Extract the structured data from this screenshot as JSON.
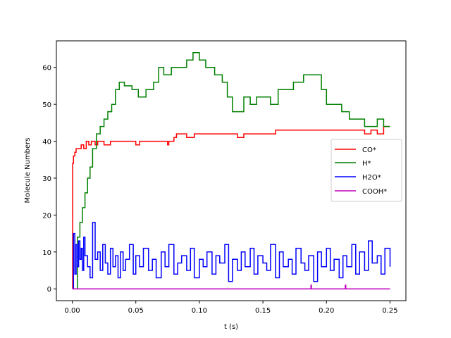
{
  "chart_data": {
    "type": "line",
    "title": "",
    "xlabel": "t (s)",
    "ylabel": "Molecule Numbers",
    "xlim": [
      -0.0125,
      0.2625
    ],
    "ylim": [
      -3.2,
      67.2
    ],
    "xticks": [
      0.0,
      0.05,
      0.1,
      0.15,
      0.2,
      0.25
    ],
    "xtick_labels": [
      "0.00",
      "0.05",
      "0.10",
      "0.15",
      "0.20",
      "0.25"
    ],
    "yticks": [
      0,
      10,
      20,
      30,
      40,
      50,
      60
    ],
    "ytick_labels": [
      "0",
      "10",
      "20",
      "30",
      "40",
      "50",
      "60"
    ],
    "grid": false,
    "legend_position": "center right",
    "step": true,
    "series": [
      {
        "name": "CO*",
        "color": "#ff0000",
        "x": [
          0.0,
          0.0003,
          0.001,
          0.002,
          0.003,
          0.005,
          0.007,
          0.009,
          0.011,
          0.013,
          0.015,
          0.018,
          0.02,
          0.025,
          0.03,
          0.035,
          0.05,
          0.053,
          0.06,
          0.075,
          0.076,
          0.08,
          0.082,
          0.09,
          0.095,
          0.096,
          0.1,
          0.13,
          0.135,
          0.14,
          0.15,
          0.155,
          0.16,
          0.18,
          0.2,
          0.22,
          0.225,
          0.23,
          0.235,
          0.24,
          0.245,
          0.25
        ],
        "values": [
          0,
          34,
          36,
          37,
          38,
          38,
          39,
          38,
          40,
          39,
          40,
          39,
          40,
          39,
          40,
          40,
          39,
          40,
          40,
          39,
          40,
          41,
          42,
          41,
          41,
          42,
          42,
          41,
          42,
          42,
          42,
          42,
          43,
          43,
          43,
          43,
          43,
          42,
          43,
          42,
          44,
          44
        ]
      },
      {
        "name": "H*",
        "color": "#008000",
        "x": [
          0.0,
          0.004,
          0.006,
          0.008,
          0.01,
          0.012,
          0.014,
          0.016,
          0.019,
          0.022,
          0.025,
          0.028,
          0.031,
          0.034,
          0.037,
          0.041,
          0.047,
          0.052,
          0.058,
          0.064,
          0.068,
          0.072,
          0.078,
          0.084,
          0.09,
          0.095,
          0.1,
          0.105,
          0.112,
          0.118,
          0.122,
          0.126,
          0.13,
          0.135,
          0.14,
          0.145,
          0.15,
          0.156,
          0.162,
          0.168,
          0.174,
          0.182,
          0.19,
          0.196,
          0.2,
          0.206,
          0.212,
          0.218,
          0.224,
          0.23,
          0.234,
          0.24,
          0.245,
          0.25
        ],
        "values": [
          0,
          14,
          18,
          22,
          26,
          30,
          33,
          38,
          42,
          44,
          46,
          48,
          50,
          54,
          56,
          55,
          54,
          52,
          54,
          56,
          60,
          58,
          60,
          60,
          62,
          64,
          62,
          60,
          58,
          56,
          52,
          48,
          48,
          52,
          50,
          52,
          52,
          50,
          54,
          54,
          56,
          58,
          58,
          54,
          50,
          50,
          48,
          46,
          46,
          44,
          44,
          46,
          44,
          44
        ]
      },
      {
        "name": "H2O*",
        "color": "#0000ff",
        "x": [
          0.0,
          0.001,
          0.002,
          0.003,
          0.004,
          0.005,
          0.006,
          0.007,
          0.008,
          0.009,
          0.01,
          0.012,
          0.014,
          0.016,
          0.018,
          0.02,
          0.022,
          0.024,
          0.026,
          0.028,
          0.03,
          0.032,
          0.034,
          0.036,
          0.038,
          0.04,
          0.042,
          0.045,
          0.048,
          0.05,
          0.053,
          0.056,
          0.06,
          0.063,
          0.066,
          0.07,
          0.073,
          0.076,
          0.08,
          0.083,
          0.086,
          0.09,
          0.093,
          0.096,
          0.1,
          0.103,
          0.106,
          0.11,
          0.113,
          0.116,
          0.12,
          0.123,
          0.126,
          0.13,
          0.133,
          0.136,
          0.14,
          0.143,
          0.146,
          0.15,
          0.153,
          0.156,
          0.16,
          0.163,
          0.166,
          0.17,
          0.173,
          0.176,
          0.18,
          0.183,
          0.186,
          0.19,
          0.193,
          0.196,
          0.2,
          0.203,
          0.206,
          0.21,
          0.213,
          0.216,
          0.22,
          0.223,
          0.226,
          0.23,
          0.233,
          0.236,
          0.24,
          0.243,
          0.246,
          0.25
        ],
        "values": [
          0,
          15,
          4,
          12,
          6,
          13,
          8,
          11,
          5,
          14,
          9,
          6,
          3,
          18,
          8,
          10,
          5,
          12,
          7,
          4,
          11,
          6,
          9,
          3,
          10,
          5,
          8,
          12,
          4,
          9,
          6,
          11,
          5,
          8,
          3,
          10,
          6,
          12,
          4,
          7,
          9,
          5,
          11,
          3,
          8,
          6,
          10,
          4,
          9,
          7,
          12,
          2,
          8,
          5,
          10,
          6,
          11,
          4,
          9,
          7,
          5,
          12,
          3,
          10,
          6,
          8,
          4,
          11,
          7,
          5,
          9,
          2,
          10,
          6,
          11,
          5,
          8,
          3,
          9,
          6,
          12,
          4,
          10,
          5,
          13,
          7,
          9,
          4,
          11,
          6
        ]
      },
      {
        "name": "COOH*",
        "color": "#bf00bf",
        "x": [
          0.0,
          0.1878,
          0.1882,
          0.2148,
          0.2152,
          0.25
        ],
        "values": [
          0,
          1,
          0,
          1,
          0,
          0
        ]
      }
    ]
  },
  "legend": {
    "items": [
      {
        "label": "CO*",
        "color": "#ff0000"
      },
      {
        "label": "H*",
        "color": "#008000"
      },
      {
        "label": "H2O*",
        "color": "#0000ff"
      },
      {
        "label": "COOH*",
        "color": "#bf00bf"
      }
    ]
  }
}
